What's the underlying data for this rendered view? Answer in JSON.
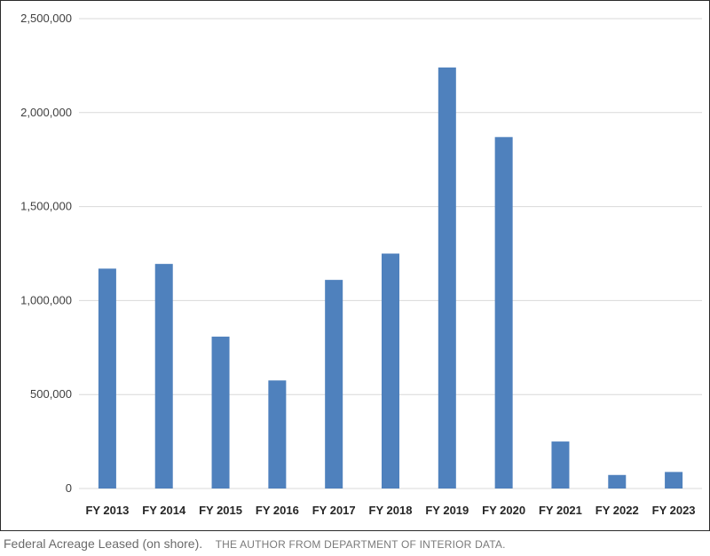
{
  "caption": {
    "title": "Federal Acreage Leased (on shore).",
    "credit": "THE AUTHOR FROM DEPARTMENT OF INTERIOR DATA."
  },
  "colors": {
    "bar": "#4f81bd",
    "grid": "#d9d9d9",
    "frame": "#2b2b2b"
  },
  "chart_data": {
    "type": "bar",
    "title": "",
    "xlabel": "",
    "ylabel": "",
    "categories": [
      "FY 2013",
      "FY 2014",
      "FY 2015",
      "FY 2016",
      "FY 2017",
      "FY 2018",
      "FY 2019",
      "FY 2020",
      "FY 2021",
      "FY 2022",
      "FY 2023"
    ],
    "values": [
      1170000,
      1195000,
      808000,
      575000,
      1110000,
      1250000,
      2240000,
      1870000,
      250000,
      72000,
      88000
    ],
    "ylim": [
      0,
      2500000
    ],
    "yticks": [
      0,
      500000,
      1000000,
      1500000,
      2000000,
      2500000
    ],
    "ytick_labels": [
      "0",
      "500,000",
      "1,000,000",
      "1,500,000",
      "2,000,000",
      "2,500,000"
    ],
    "grid": true,
    "legend": "none"
  }
}
